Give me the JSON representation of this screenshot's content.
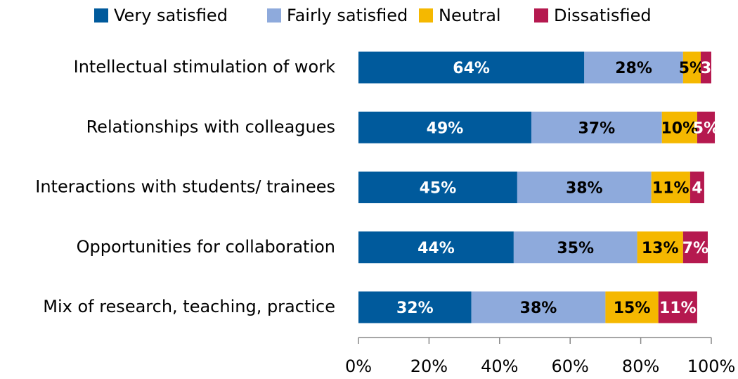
{
  "chart_data": {
    "type": "stacked_bar_horizontal",
    "categories": [
      "Intellectual stimulation of work",
      "Relationships with colleagues",
      "Interactions with students/ trainees",
      "Opportunities for collaboration",
      "Mix of research, teaching, practice"
    ],
    "series": [
      {
        "name": "Very satisfied",
        "color": "#005a9c",
        "label_color": "#ffffff",
        "values": [
          64,
          49,
          45,
          44,
          32
        ],
        "value_labels": [
          "64%",
          "49%",
          "45%",
          "44%",
          "32%"
        ]
      },
      {
        "name": "Fairly satisfied",
        "color": "#8eaadc",
        "label_color": "#000000",
        "values": [
          28,
          37,
          38,
          35,
          38
        ],
        "value_labels": [
          "28%",
          "37%",
          "38%",
          "35%",
          "38%"
        ]
      },
      {
        "name": "Neutral",
        "color": "#f5b800",
        "label_color": "#000000",
        "values": [
          5,
          10,
          11,
          13,
          15
        ],
        "value_labels": [
          "5%",
          "10%",
          "11%",
          "13%",
          "15%"
        ]
      },
      {
        "name": "Dissatisfied",
        "color": "#b5194f",
        "label_color": "#ffffff",
        "values": [
          3,
          5,
          4,
          7,
          11
        ],
        "value_labels": [
          "3",
          "5%",
          "4",
          "7%",
          "11%"
        ]
      }
    ],
    "xlim": [
      0,
      100
    ],
    "xticks": [
      {
        "value": 0,
        "label": "0%"
      },
      {
        "value": 20,
        "label": "20%"
      },
      {
        "value": 40,
        "label": "40%"
      },
      {
        "value": 60,
        "label": "60%"
      },
      {
        "value": 80,
        "label": "80%"
      },
      {
        "value": 100,
        "label": "100%"
      }
    ],
    "legend": "top"
  }
}
